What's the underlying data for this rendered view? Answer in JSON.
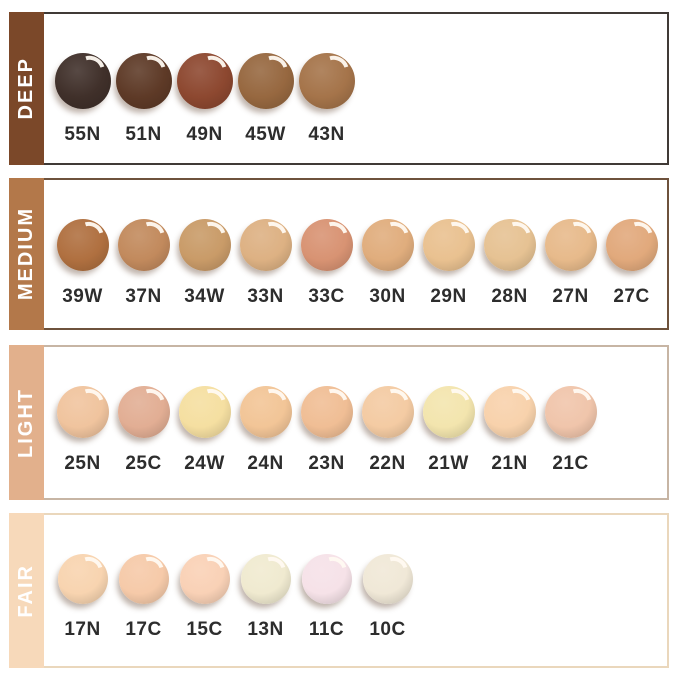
{
  "chart": {
    "type": "shade-swatch-table",
    "rows": [
      {
        "label": "DEEP",
        "band_color": "#7b4829",
        "border_color": "#403a36",
        "swatch_size": 56,
        "swatches": [
          {
            "code": "55N",
            "color": "#40302a"
          },
          {
            "code": "51N",
            "color": "#5e3a27"
          },
          {
            "code": "49N",
            "color": "#8d4830"
          },
          {
            "code": "45W",
            "color": "#976840"
          },
          {
            "code": "43N",
            "color": "#a5744a"
          }
        ]
      },
      {
        "label": "MEDIUM",
        "band_color": "#b3784a",
        "border_color": "#6e523c",
        "swatch_size": 52,
        "swatches": [
          {
            "code": "39W",
            "color": "#b07040"
          },
          {
            "code": "37N",
            "color": "#c28a5d"
          },
          {
            "code": "34W",
            "color": "#c99b68"
          },
          {
            "code": "33N",
            "color": "#ddb183"
          },
          {
            "code": "33C",
            "color": "#d89373"
          },
          {
            "code": "30N",
            "color": "#e0ad7d"
          },
          {
            "code": "29N",
            "color": "#e9c190"
          },
          {
            "code": "28N",
            "color": "#e6c293"
          },
          {
            "code": "27N",
            "color": "#e7ba8b"
          },
          {
            "code": "27C",
            "color": "#e1a97c"
          }
        ]
      },
      {
        "label": "LIGHT",
        "band_color": "#e2b08c",
        "border_color": "#c7b5a4",
        "swatch_size": 52,
        "swatches": [
          {
            "code": "25N",
            "color": "#f0c49e"
          },
          {
            "code": "25C",
            "color": "#e2ae94"
          },
          {
            "code": "24W",
            "color": "#f5dfa1"
          },
          {
            "code": "24N",
            "color": "#f2c597"
          },
          {
            "code": "23N",
            "color": "#f0be95"
          },
          {
            "code": "22N",
            "color": "#f4cba3"
          },
          {
            "code": "21W",
            "color": "#f3e5ae"
          },
          {
            "code": "21N",
            "color": "#f8d2ac"
          },
          {
            "code": "21C",
            "color": "#f0c5ab"
          }
        ]
      },
      {
        "label": "FAIR",
        "band_color": "#f7d9ba",
        "border_color": "#ead7bc",
        "swatch_size": 50,
        "swatches": [
          {
            "code": "17N",
            "color": "#f8d4b0"
          },
          {
            "code": "17C",
            "color": "#f6caa9"
          },
          {
            "code": "15C",
            "color": "#f9d1b6"
          },
          {
            "code": "13N",
            "color": "#f0ead0"
          },
          {
            "code": "11C",
            "color": "#f6e2e8"
          },
          {
            "code": "10C",
            "color": "#f0e8d7"
          }
        ]
      }
    ]
  }
}
